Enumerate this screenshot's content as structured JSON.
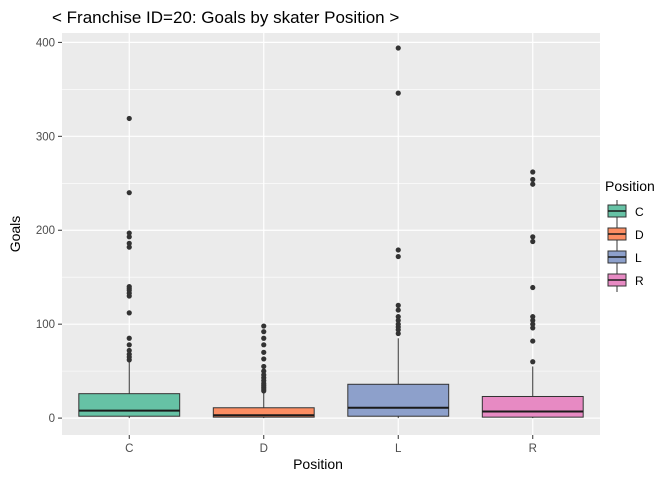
{
  "chart_data": {
    "type": "boxplot",
    "title": "< Franchise ID=20: Goals by skater Position >",
    "xlabel": "Position",
    "ylabel": "Goals",
    "categories": [
      "C",
      "D",
      "L",
      "R"
    ],
    "ylim": [
      -18,
      410
    ],
    "yticks": [
      0,
      100,
      200,
      300,
      400
    ],
    "grid": true,
    "legend": {
      "title": "Position",
      "position": "right",
      "items": [
        "C",
        "D",
        "L",
        "R"
      ]
    },
    "colors": {
      "C": "#66c2a5",
      "D": "#fc8d62",
      "L": "#8da0cb",
      "R": "#e78ac3",
      "panel": "#ebebeb",
      "grid": "#ffffff",
      "outline": "#333333"
    },
    "series": [
      {
        "category": "C",
        "q1": 2,
        "median": 8,
        "q3": 26,
        "whisker_low": 0,
        "whisker_high": 60,
        "outliers": [
          62,
          65,
          68,
          72,
          78,
          85,
          112,
          130,
          133,
          136,
          138,
          140,
          182,
          186,
          193,
          197,
          240,
          319
        ]
      },
      {
        "category": "D",
        "q1": 1,
        "median": 3,
        "q3": 11,
        "whisker_low": 0,
        "whisker_high": 27,
        "outliers": [
          29,
          31,
          33,
          35,
          37,
          40,
          43,
          46,
          50,
          55,
          63,
          70,
          78,
          85,
          92,
          98
        ]
      },
      {
        "category": "L",
        "q1": 2,
        "median": 11,
        "q3": 36,
        "whisker_low": 0,
        "whisker_high": 85,
        "outliers": [
          90,
          94,
          97,
          100,
          104,
          108,
          115,
          120,
          172,
          179,
          346,
          394
        ]
      },
      {
        "category": "R",
        "q1": 1,
        "median": 7,
        "q3": 23,
        "whisker_low": 0,
        "whisker_high": 55,
        "outliers": [
          60,
          82,
          96,
          100,
          104,
          108,
          139,
          188,
          193,
          249,
          254,
          262
        ]
      }
    ]
  }
}
